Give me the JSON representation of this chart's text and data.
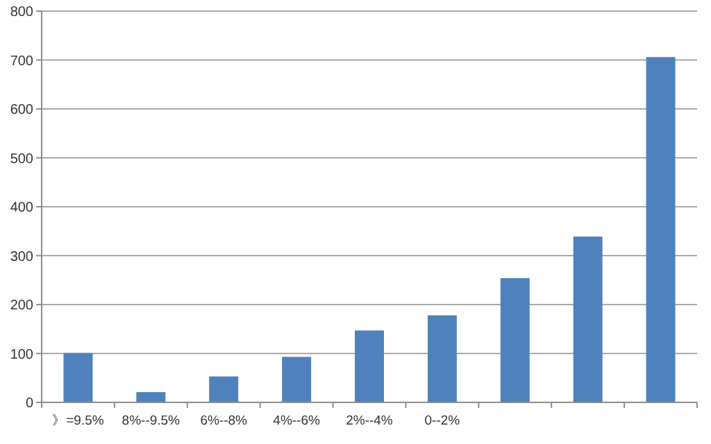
{
  "chart_data": {
    "type": "bar",
    "categories": [
      "》=9.5%",
      "8%--9.5%",
      "6%--8%",
      "4%--6%",
      "2%--4%",
      "0--2%",
      null,
      null,
      null
    ],
    "values": [
      101,
      21,
      53,
      93,
      147,
      178,
      254,
      339,
      706
    ],
    "color": "#4f81bd",
    "ylim": [
      0,
      800
    ],
    "yticks": [
      0,
      100,
      200,
      300,
      400,
      500,
      600,
      700,
      800
    ],
    "grid": "y"
  }
}
